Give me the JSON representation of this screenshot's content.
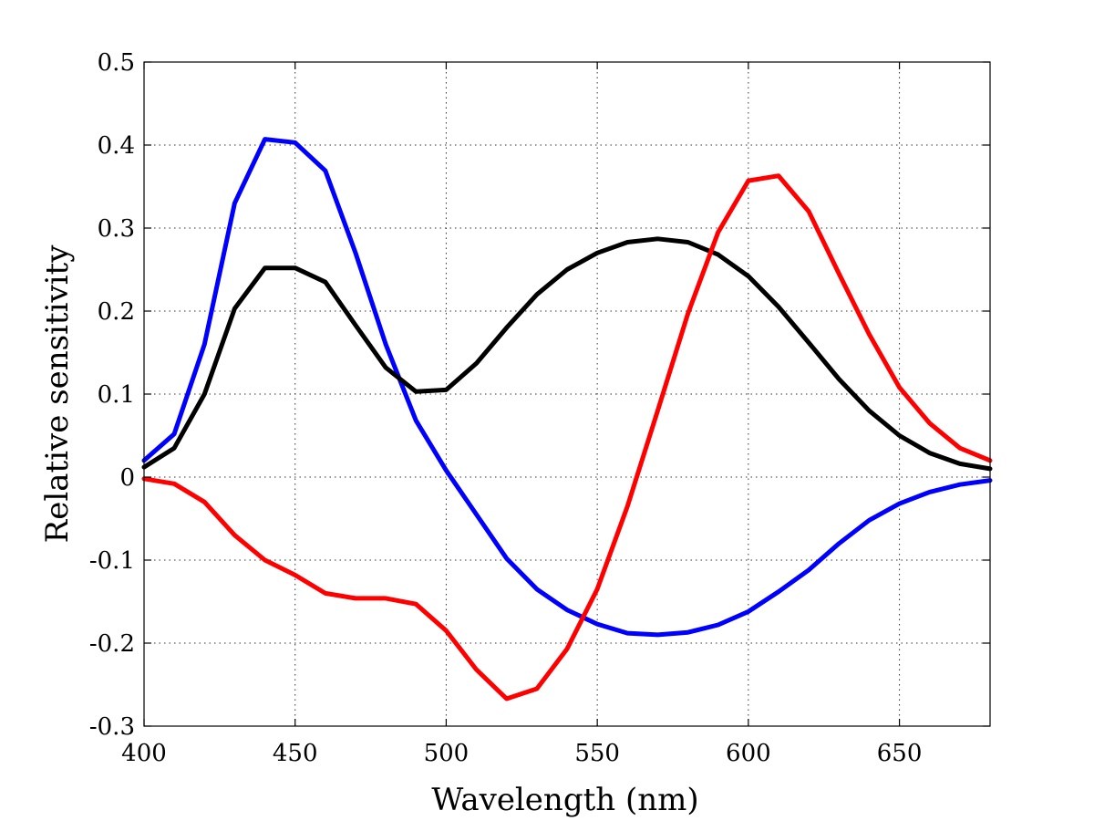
{
  "chart_data": {
    "type": "line",
    "xlabel": "Wavelength (nm)",
    "ylabel": "Relative sensitivity",
    "xlim": [
      400,
      680
    ],
    "ylim": [
      -0.3,
      0.5
    ],
    "xticks": [
      400,
      450,
      500,
      550,
      600,
      650
    ],
    "xtick_labels": [
      "400",
      "450",
      "500",
      "550",
      "600",
      "650"
    ],
    "yticks": [
      -0.3,
      -0.2,
      -0.1,
      0,
      0.1,
      0.2,
      0.3,
      0.4,
      0.5
    ],
    "ytick_labels": [
      "-0.3",
      "-0.2",
      "-0.1",
      "0",
      "0.1",
      "0.2",
      "0.3",
      "0.4",
      "0.5"
    ],
    "grid": true,
    "x": [
      400,
      410,
      420,
      430,
      440,
      450,
      460,
      470,
      480,
      490,
      500,
      510,
      520,
      530,
      540,
      550,
      560,
      570,
      580,
      590,
      600,
      610,
      620,
      630,
      640,
      650,
      660,
      670,
      680
    ],
    "series": [
      {
        "color": "#0000ff",
        "values": [
          0.02,
          0.052,
          0.16,
          0.33,
          0.407,
          0.403,
          0.369,
          0.27,
          0.16,
          0.068,
          0.008,
          -0.045,
          -0.098,
          -0.135,
          -0.16,
          -0.177,
          -0.188,
          -0.19,
          -0.187,
          -0.178,
          -0.162,
          -0.138,
          -0.112,
          -0.08,
          -0.052,
          -0.032,
          -0.018,
          -0.009,
          -0.004
        ]
      },
      {
        "color": "#000000",
        "values": [
          0.012,
          0.035,
          0.1,
          0.203,
          0.252,
          0.252,
          0.235,
          0.183,
          0.132,
          0.103,
          0.105,
          0.137,
          0.18,
          0.22,
          0.25,
          0.27,
          0.283,
          0.287,
          0.283,
          0.268,
          0.242,
          0.205,
          0.162,
          0.118,
          0.08,
          0.05,
          0.029,
          0.016,
          0.01
        ]
      },
      {
        "color": "#ff0000",
        "values": [
          -0.002,
          -0.008,
          -0.03,
          -0.07,
          -0.1,
          -0.118,
          -0.14,
          -0.146,
          -0.146,
          -0.153,
          -0.185,
          -0.232,
          -0.267,
          -0.255,
          -0.207,
          -0.135,
          -0.035,
          0.08,
          0.197,
          0.295,
          0.357,
          0.363,
          0.32,
          0.245,
          0.172,
          0.108,
          0.065,
          0.035,
          0.02
        ]
      }
    ]
  }
}
